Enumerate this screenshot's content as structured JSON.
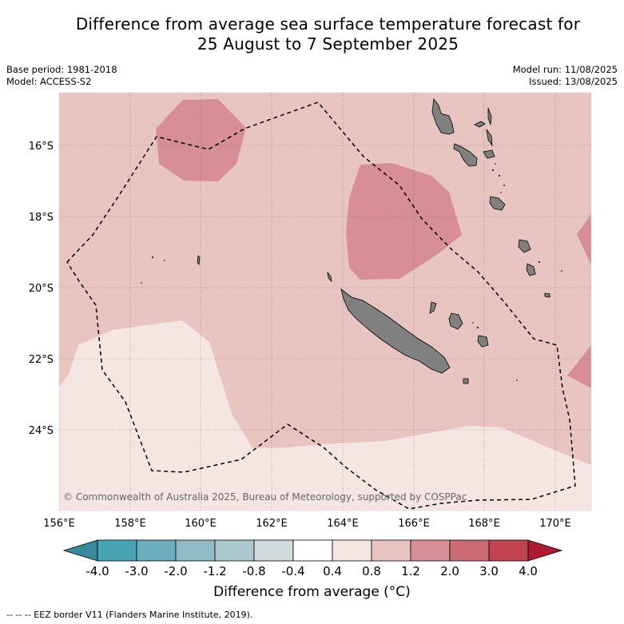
{
  "title_line1": "Difference from average sea surface temperature forecast for",
  "title_line2": "25 August to 7 September 2025",
  "base_period": "Base period: 1981-2018",
  "model": "Model: ACCESS-S2",
  "model_run": "Model run: 11/08/2025",
  "issued": "Issued: 13/08/2025",
  "copyright": "© Commonwealth of Australia 2025, Bureau of Meteorology, supported by COSPPac",
  "lon_labels": [
    "156°E",
    "158°E",
    "160°E",
    "162°E",
    "164°E",
    "166°E",
    "168°E",
    "170°E"
  ],
  "lat_labels": [
    "16°S",
    "18°S",
    "20°S",
    "22°S",
    "24°S"
  ],
  "colorbar": {
    "ticks": [
      "-4.0",
      "-3.0",
      "-2.0",
      "-1.2",
      "-0.8",
      "-0.4",
      "0.4",
      "0.8",
      "1.2",
      "2.0",
      "3.0",
      "4.0"
    ],
    "colors": [
      "#3a8a9c",
      "#47a4b4",
      "#6aaebd",
      "#8fbac6",
      "#aac9cc",
      "#d1dadc",
      "#ffffff",
      "#f5e6e4",
      "#e8c5c0",
      "#d78e97",
      "#cb6b74",
      "#c0434f",
      "#ae1a32"
    ],
    "title": "Difference from average (°C)"
  },
  "footer": "--  --  -- EEZ border V11 (Flanders Marine Institute, 2019).",
  "colors": {
    "anom_04_08": "#f5e6e4",
    "anom_08_12": "#e8c5c0",
    "anom_12_20": "#d78e97",
    "land": "#808080"
  }
}
